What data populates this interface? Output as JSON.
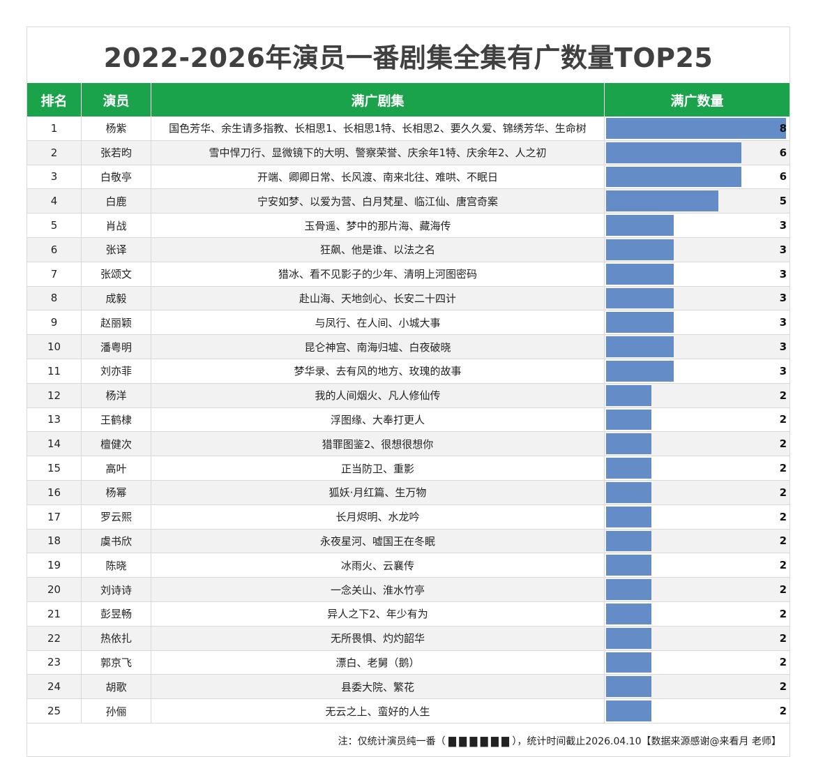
{
  "title": "2022-2026年演员一番剧集全集有广数量TOP25",
  "headers": {
    "rank": "排名",
    "actor": "演员",
    "dramas": "满广剧集",
    "count": "满广数量"
  },
  "note": "注：仅统计演员纯一番（ ▇ ▇ ▇ ▇ ▇ ▇ ），统计时间截止2026.04.10【数据来源感谢@来看月 老师】",
  "colors": {
    "header_bg": "#1aa34a",
    "bar": "#648dc8",
    "title": "#404040"
  },
  "chart_data": {
    "type": "bar",
    "orientation": "horizontal",
    "xlim": [
      0,
      8
    ],
    "categories": [
      "杨紫",
      "张若昀",
      "白敬亭",
      "白鹿",
      "肖战",
      "张译",
      "张颂文",
      "成毅",
      "赵丽颖",
      "潘粤明",
      "刘亦菲",
      "杨洋",
      "王鹤棣",
      "檀健次",
      "高叶",
      "杨幂",
      "罗云熙",
      "虞书欣",
      "陈晓",
      "刘诗诗",
      "彭昱畅",
      "热依扎",
      "郭京飞",
      "胡歌",
      "孙俪"
    ],
    "values": [
      8,
      6,
      6,
      5,
      3,
      3,
      3,
      3,
      3,
      3,
      3,
      2,
      2,
      2,
      2,
      2,
      2,
      2,
      2,
      2,
      2,
      2,
      2,
      2,
      2
    ],
    "rows": [
      {
        "rank": "1",
        "actor": "杨紫",
        "dramas": "国色芳华、余生请多指教、长相思1、长相思1特、长相思2、要久久爱、锦绣芳华、生命树",
        "count": 8
      },
      {
        "rank": "2",
        "actor": "张若昀",
        "dramas": "雪中悍刀行、显微镜下的大明、警察荣誉、庆余年1特、庆余年2、人之初",
        "count": 6
      },
      {
        "rank": "3",
        "actor": "白敬亭",
        "dramas": "开端、卿卿日常、长风渡、南来北往、难哄、不眠日",
        "count": 6
      },
      {
        "rank": "4",
        "actor": "白鹿",
        "dramas": "宁安如梦、以爱为营、白月梵星、临江仙、唐宫奇案",
        "count": 5
      },
      {
        "rank": "5",
        "actor": "肖战",
        "dramas": "玉骨遥、梦中的那片海、藏海传",
        "count": 3
      },
      {
        "rank": "6",
        "actor": "张译",
        "dramas": "狂飙、他是谁、以法之名",
        "count": 3
      },
      {
        "rank": "7",
        "actor": "张颂文",
        "dramas": "猎冰、看不见影子的少年、清明上河图密码",
        "count": 3
      },
      {
        "rank": "8",
        "actor": "成毅",
        "dramas": "赴山海、天地剑心、长安二十四计",
        "count": 3
      },
      {
        "rank": "9",
        "actor": "赵丽颖",
        "dramas": "与凤行、在人间、小城大事",
        "count": 3
      },
      {
        "rank": "10",
        "actor": "潘粤明",
        "dramas": "昆仑神宫、南海归墟、白夜破晓",
        "count": 3
      },
      {
        "rank": "11",
        "actor": "刘亦菲",
        "dramas": "梦华录、去有风的地方、玫瑰的故事",
        "count": 3
      },
      {
        "rank": "12",
        "actor": "杨洋",
        "dramas": "我的人间烟火、凡人修仙传",
        "count": 2
      },
      {
        "rank": "13",
        "actor": "王鹤棣",
        "dramas": "浮图缘、大奉打更人",
        "count": 2
      },
      {
        "rank": "14",
        "actor": "檀健次",
        "dramas": "猎罪图鉴2、很想很想你",
        "count": 2
      },
      {
        "rank": "15",
        "actor": "高叶",
        "dramas": "正当防卫、重影",
        "count": 2
      },
      {
        "rank": "16",
        "actor": "杨幂",
        "dramas": "狐妖·月红篇、生万物",
        "count": 2
      },
      {
        "rank": "17",
        "actor": "罗云熙",
        "dramas": "长月烬明、水龙吟",
        "count": 2
      },
      {
        "rank": "18",
        "actor": "虞书欣",
        "dramas": "永夜星河、嘘国王在冬眠",
        "count": 2
      },
      {
        "rank": "19",
        "actor": "陈晓",
        "dramas": "冰雨火、云襄传",
        "count": 2
      },
      {
        "rank": "20",
        "actor": "刘诗诗",
        "dramas": "一念关山、淮水竹亭",
        "count": 2
      },
      {
        "rank": "21",
        "actor": "彭昱畅",
        "dramas": "异人之下2、年少有为",
        "count": 2
      },
      {
        "rank": "22",
        "actor": "热依扎",
        "dramas": "无所畏惧、灼灼韶华",
        "count": 2
      },
      {
        "rank": "23",
        "actor": "郭京飞",
        "dramas": "漂白、老舅（鹅）",
        "count": 2
      },
      {
        "rank": "24",
        "actor": "胡歌",
        "dramas": "县委大院、繁花",
        "count": 2
      },
      {
        "rank": "25",
        "actor": "孙俪",
        "dramas": "无云之上、蛮好的人生",
        "count": 2
      }
    ]
  }
}
